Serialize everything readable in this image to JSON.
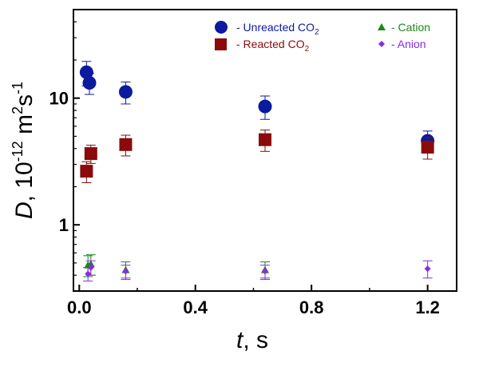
{
  "chart_data": {
    "type": "scatter",
    "x_scale": "linear",
    "y_scale": "log",
    "xlim": [
      -0.02,
      1.3
    ],
    "ylim": [
      0.3,
      50
    ],
    "x_ticks": [
      {
        "value": 0.0,
        "label": "0.0"
      },
      {
        "value": 0.4,
        "label": "0.4"
      },
      {
        "value": 0.8,
        "label": "0.8"
      },
      {
        "value": 1.2,
        "label": "1.2"
      }
    ],
    "y_ticks": [
      {
        "value": 1,
        "label": "1"
      },
      {
        "value": 10,
        "label": "10"
      }
    ],
    "xlabel": {
      "var": "t",
      "rest": ", s"
    },
    "ylabel": {
      "var": "D",
      "rest": ", 10",
      "exp1": "-12",
      "mid": " m",
      "exp2": "2",
      "unit3": "s",
      "exp3": "-1"
    },
    "legend_position": "top",
    "series": [
      {
        "label": "- Unreacted CO",
        "sub": "2",
        "marker": "circle",
        "color": "#0b1a9e",
        "points": [
          {
            "x": 0.025,
            "y": 16.0,
            "err": 3.5
          },
          {
            "x": 0.035,
            "y": 13.2,
            "err": 2.5
          },
          {
            "x": 0.16,
            "y": 11.2,
            "err": 2.2
          },
          {
            "x": 0.64,
            "y": 8.6,
            "err": 1.8
          },
          {
            "x": 1.2,
            "y": 4.6,
            "err": 0.9
          }
        ]
      },
      {
        "label": "- Reacted CO",
        "sub": "2",
        "marker": "square",
        "color": "#8b0a0a",
        "points": [
          {
            "x": 0.025,
            "y": 2.65,
            "err": 0.5
          },
          {
            "x": 0.04,
            "y": 3.65,
            "err": 0.6
          },
          {
            "x": 0.16,
            "y": 4.3,
            "err": 0.8
          },
          {
            "x": 0.64,
            "y": 4.7,
            "err": 0.9
          },
          {
            "x": 1.2,
            "y": 4.1,
            "err": 0.8
          }
        ]
      },
      {
        "label": "- Cation",
        "sub": "",
        "marker": "triangle",
        "color": "#1a8a1a",
        "points": [
          {
            "x": 0.03,
            "y": 0.48,
            "err": 0.09
          },
          {
            "x": 0.04,
            "y": 0.49,
            "err": 0.09
          },
          {
            "x": 0.16,
            "y": 0.44,
            "err": 0.07
          },
          {
            "x": 0.64,
            "y": 0.44,
            "err": 0.07
          }
        ]
      },
      {
        "label": "- Anion",
        "sub": "",
        "marker": "diamond",
        "color": "#8a2be2",
        "points": [
          {
            "x": 0.03,
            "y": 0.41,
            "err": 0.05
          },
          {
            "x": 0.04,
            "y": 0.46,
            "err": 0.06
          },
          {
            "x": 0.16,
            "y": 0.43,
            "err": 0.05
          },
          {
            "x": 0.64,
            "y": 0.43,
            "err": 0.05
          },
          {
            "x": 1.2,
            "y": 0.45,
            "err": 0.07
          }
        ]
      }
    ]
  }
}
